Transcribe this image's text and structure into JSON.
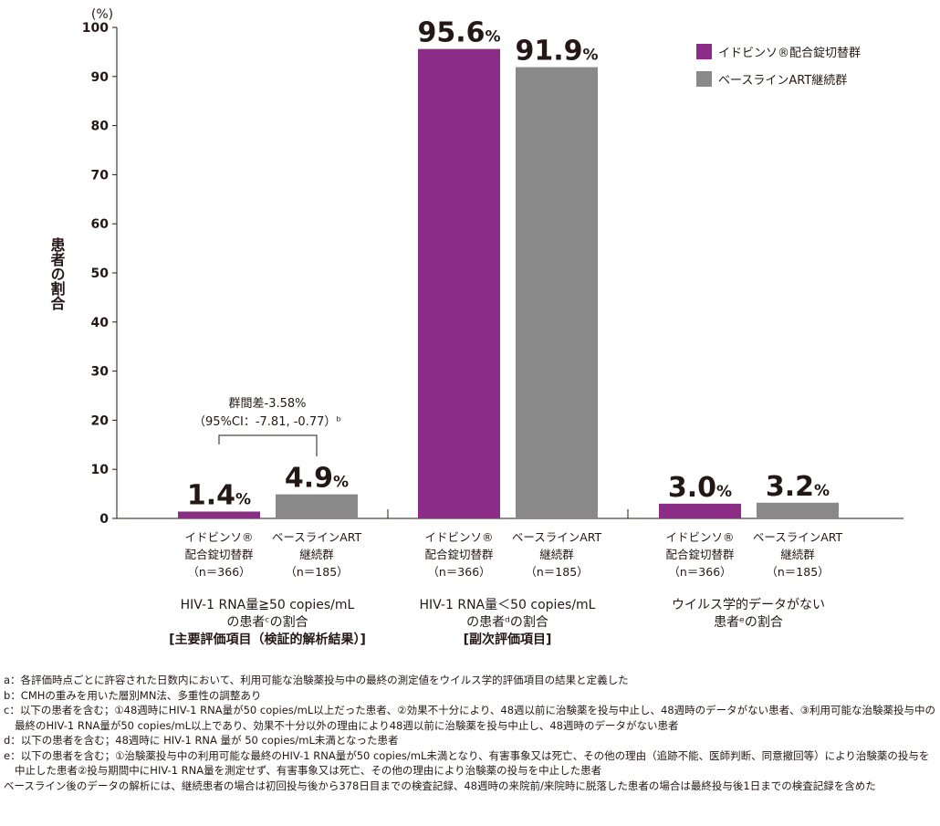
{
  "chart_data": {
    "type": "bar",
    "ylabel": "患者の割合",
    "yunit": "(%)",
    "ylim": [
      0,
      100
    ],
    "yticks": [
      0,
      10,
      20,
      30,
      40,
      50,
      60,
      70,
      80,
      90,
      100
    ],
    "grid": false,
    "legend_position": "top-right",
    "series": [
      {
        "name": "イドビンソ®配合錠切替群",
        "color": "#8b2d87",
        "values": [
          1.4,
          95.6,
          3.0
        ]
      },
      {
        "name": "ベースラインART継続群",
        "color": "#898989",
        "values": [
          4.9,
          91.9,
          3.2
        ]
      }
    ],
    "data_labels": [
      [
        "1.4",
        "95.6",
        "3.0"
      ],
      [
        "4.9",
        "91.9",
        "3.2"
      ]
    ],
    "percent_sign": "%",
    "bar_labels": [
      [
        "イドビンソ®",
        "配合錠切替群",
        "（n＝366）"
      ],
      [
        "ベースラインART",
        "継続群",
        "（n＝185）"
      ]
    ],
    "categories": [
      [
        "HIV-1 RNA量≧50 copies/mL",
        "の患者ᶜの割合",
        "[主要評価項目（検証的解析結果）]"
      ],
      [
        "HIV-1 RNA量＜50 copies/mL",
        "の患者ᵈの割合",
        "[副次評価項目]"
      ],
      [
        "ウイルス学的データがない",
        "患者ᵉの割合"
      ]
    ],
    "annotation": {
      "line1": "群間差-3.58%",
      "line2": "（95%CI：-7.81, -0.77）ᵇ"
    }
  },
  "footnotes": [
    "a：各評価時点ごとに許容された日数内において、利用可能な治験薬投与中の最終の測定値をウイルス学的評価項目の結果と定義した",
    "b：CMHの重みを用いた層別MN法、多重性の調整あり",
    "c：以下の患者を含む；①48週時にHIV-1 RNA量が50 copies/mL以上だった患者、②効果不十分により、48週以前に治験薬を投与中止し、48週時のデータがない患者、③利用可能な治験薬投与中の最終のHIV-1 RNA量が50 copies/mL以上であり、効果不十分以外の理由により48週以前に治験薬を投与中止し、48週時のデータがない患者",
    "d：以下の患者を含む；48週時に HIV-1 RNA 量が 50 copies/mL未満となった患者",
    "e：以下の患者を含む；①治験薬投与中の利用可能な最終のHIV-1 RNA量が50 copies/mL未満となり、有害事象又は死亡、その他の理由（追跡不能、医師判断、同意撤回等）により治験薬の投与を中止した患者②投与期間中にHIV-1 RNA量を測定せず、有害事象又は死亡、その他の理由により治験薬の投与を中止した患者",
    "ベースライン後のデータの解析には、継続患者の場合は初回投与後から378日目までの検査記録、48週時の来院前/来院時に脱落した患者の場合は最終投与後1日までの検査記録を含めた"
  ]
}
